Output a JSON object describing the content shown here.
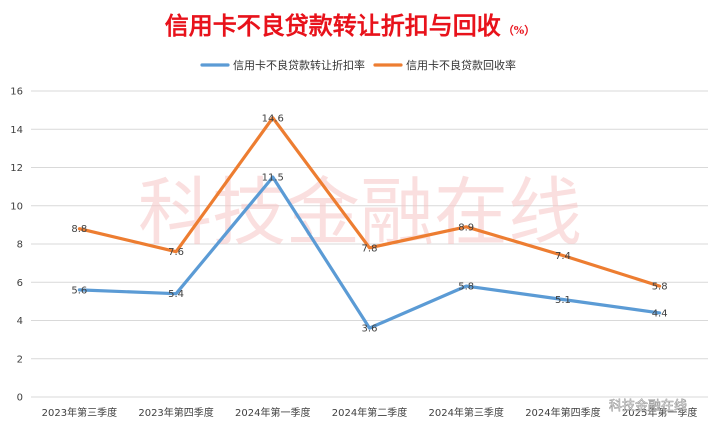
{
  "chart_data": {
    "type": "line",
    "title": "信用卡不良贷款转让折扣与回收",
    "title_unit": "（%）",
    "categories": [
      "2023年第三季度",
      "2023年第四季度",
      "2024年第一季度",
      "2024年第二季度",
      "2024年第三季度",
      "2024年第四季度",
      "2025年第一季度"
    ],
    "series": [
      {
        "name": "信用卡不良贷款转让折扣率",
        "values": [
          5.6,
          5.4,
          11.5,
          3.6,
          5.8,
          5.1,
          4.4
        ],
        "color": "#5b9bd5"
      },
      {
        "name": "信用卡不良贷款回收率",
        "values": [
          8.8,
          7.6,
          14.6,
          7.8,
          8.9,
          7.4,
          5.8
        ],
        "color": "#ed7d31"
      }
    ],
    "ylim": [
      0,
      16
    ],
    "yticks": [
      0,
      2,
      4,
      6,
      8,
      10,
      12,
      14,
      16
    ],
    "grid": true,
    "legend": "top-center",
    "data_labels": true
  },
  "watermark": "科技金融在线",
  "watermark_small": "科技金融在线"
}
